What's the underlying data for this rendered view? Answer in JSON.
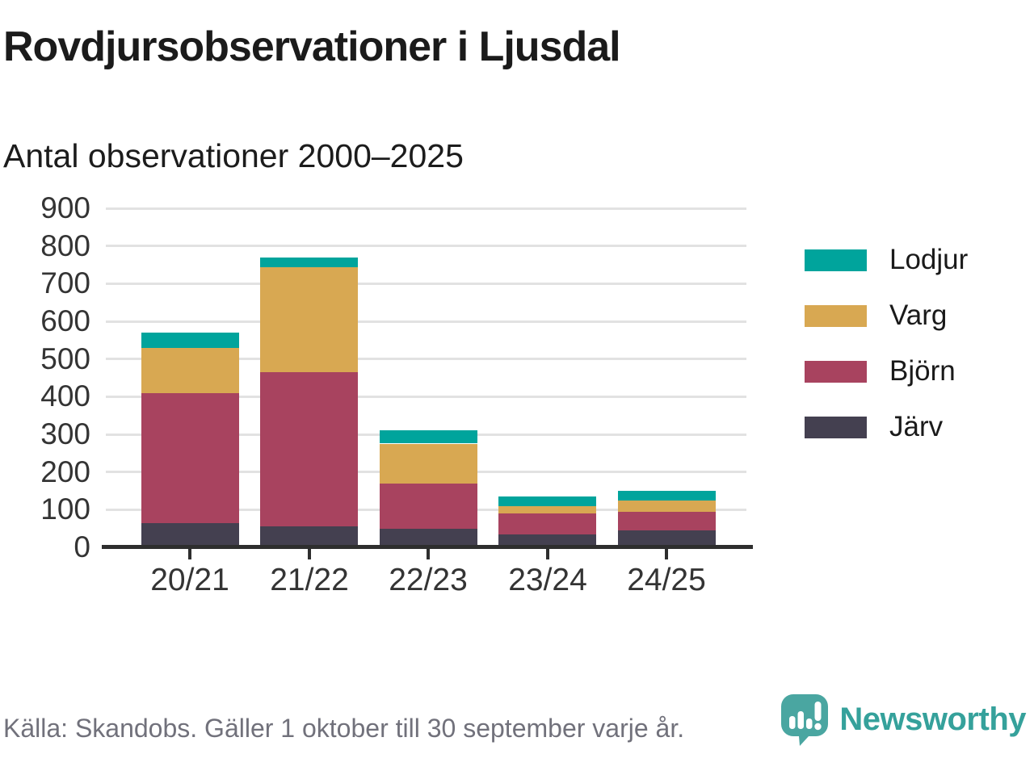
{
  "header": {
    "title": "Rovdjursobservationer i Ljusdal",
    "subtitle": "Antal observationer 2000–2025"
  },
  "chart_data": {
    "type": "bar",
    "stacked": true,
    "title": "Rovdjursobservationer i Ljusdal",
    "subtitle": "Antal observationer 2000–2025",
    "categories": [
      "20/21",
      "21/22",
      "22/23",
      "23/24",
      "24/25"
    ],
    "series": [
      {
        "name": "Lodjur",
        "color": "#00a49c",
        "values": [
          40,
          25,
          35,
          25,
          25
        ]
      },
      {
        "name": "Varg",
        "color": "#d8a852",
        "values": [
          120,
          280,
          105,
          20,
          30
        ]
      },
      {
        "name": "Björn",
        "color": "#a8435f",
        "values": [
          345,
          410,
          120,
          55,
          50
        ]
      },
      {
        "name": "Järv",
        "color": "#444050",
        "values": [
          65,
          55,
          50,
          35,
          45
        ]
      }
    ],
    "stack_order_bottom_to_top": [
      "Järv",
      "Björn",
      "Varg",
      "Lodjur"
    ],
    "totals": [
      570,
      770,
      310,
      135,
      150
    ],
    "ylim": [
      0,
      900
    ],
    "ytick_interval": 100,
    "xlabel": "",
    "ylabel": "",
    "grid": true,
    "legend_position": "right"
  },
  "footer": {
    "source": "Källa: Skandobs. Gäller 1 oktober till 30 september varje år.",
    "brand": "Newsworthy"
  },
  "colors": {
    "accent_teal": "#00a49c",
    "gold": "#d8a852",
    "maroon": "#a8435f",
    "dark_slate": "#444050",
    "gridline": "#e2e2e2",
    "axis": "#2e2e2e",
    "footer_text": "#71717b",
    "brand_teal": "#35a19b",
    "logo_bubble": "#4aa6a1"
  }
}
